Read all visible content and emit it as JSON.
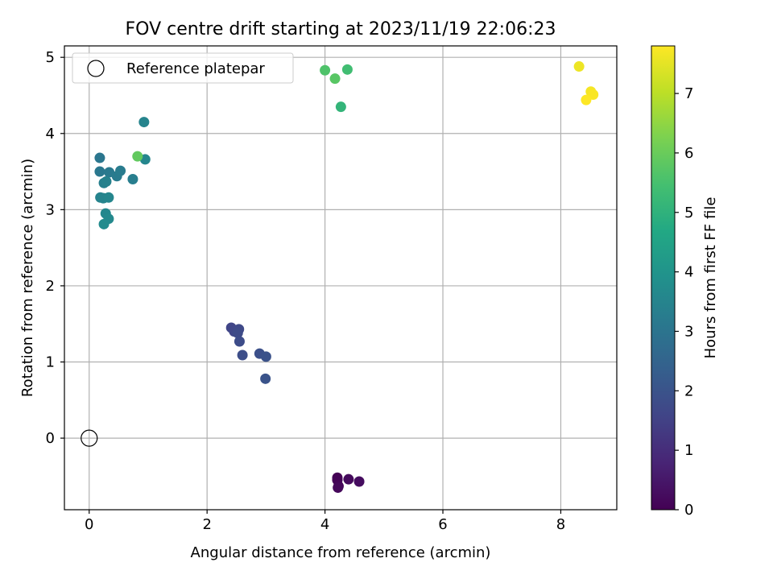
{
  "chart_data": {
    "type": "scatter",
    "title": "FOV centre drift starting at 2023/11/19 22:06:23",
    "xlabel": "Angular distance from reference (arcmin)",
    "ylabel": "Rotation from reference (arcmin)",
    "xlim": [
      -0.42,
      8.95
    ],
    "ylim": [
      -0.94,
      5.15
    ],
    "xticks": [
      "0",
      "2",
      "4",
      "6",
      "8"
    ],
    "xtick_values": [
      0,
      2,
      4,
      6,
      8
    ],
    "yticks": [
      "0",
      "1",
      "2",
      "3",
      "4",
      "5"
    ],
    "ytick_values": [
      0,
      1,
      2,
      3,
      4,
      5
    ],
    "grid": true,
    "legend": {
      "position": "upper-left",
      "entries": [
        "Reference platepar"
      ]
    },
    "reference_point": {
      "x": 0,
      "y": 0
    },
    "colorbar": {
      "label": "Hours from first FF file",
      "colormap": "viridis",
      "range": [
        0,
        7.8
      ],
      "ticks": [
        "0",
        "1",
        "2",
        "3",
        "4",
        "5",
        "6",
        "7"
      ],
      "tick_values": [
        0,
        1,
        2,
        3,
        4,
        5,
        6,
        7
      ]
    },
    "points": [
      {
        "x": 4.21,
        "y": -0.52,
        "c": 0.0
      },
      {
        "x": 4.21,
        "y": -0.55,
        "c": 0.05
      },
      {
        "x": 4.23,
        "y": -0.63,
        "c": 0.1
      },
      {
        "x": 4.22,
        "y": -0.65,
        "c": 0.15
      },
      {
        "x": 4.4,
        "y": -0.54,
        "c": 0.2
      },
      {
        "x": 4.58,
        "y": -0.57,
        "c": 0.25
      },
      {
        "x": 2.41,
        "y": 1.45,
        "c": 1.6
      },
      {
        "x": 2.46,
        "y": 1.4,
        "c": 1.65
      },
      {
        "x": 2.54,
        "y": 1.43,
        "c": 1.7
      },
      {
        "x": 2.52,
        "y": 1.38,
        "c": 1.75
      },
      {
        "x": 2.55,
        "y": 1.27,
        "c": 1.8
      },
      {
        "x": 2.6,
        "y": 1.09,
        "c": 1.85
      },
      {
        "x": 2.89,
        "y": 1.11,
        "c": 1.9
      },
      {
        "x": 3.0,
        "y": 1.07,
        "c": 1.95
      },
      {
        "x": 2.99,
        "y": 0.78,
        "c": 2.0
      },
      {
        "x": 0.18,
        "y": 3.68,
        "c": 3.05
      },
      {
        "x": 0.18,
        "y": 3.5,
        "c": 3.1
      },
      {
        "x": 0.34,
        "y": 3.49,
        "c": 3.15
      },
      {
        "x": 0.47,
        "y": 3.44,
        "c": 3.2
      },
      {
        "x": 0.53,
        "y": 3.51,
        "c": 3.25
      },
      {
        "x": 0.74,
        "y": 3.4,
        "c": 3.3
      },
      {
        "x": 0.25,
        "y": 3.35,
        "c": 3.35
      },
      {
        "x": 0.29,
        "y": 3.37,
        "c": 3.4
      },
      {
        "x": 0.19,
        "y": 3.16,
        "c": 3.45
      },
      {
        "x": 0.24,
        "y": 3.15,
        "c": 3.5
      },
      {
        "x": 0.33,
        "y": 3.16,
        "c": 3.55
      },
      {
        "x": 0.28,
        "y": 2.95,
        "c": 3.6
      },
      {
        "x": 0.33,
        "y": 2.88,
        "c": 3.65
      },
      {
        "x": 0.25,
        "y": 2.81,
        "c": 3.7
      },
      {
        "x": 0.93,
        "y": 4.15,
        "c": 3.5
      },
      {
        "x": 0.95,
        "y": 3.66,
        "c": 3.55
      },
      {
        "x": 0.82,
        "y": 3.7,
        "c": 5.9
      },
      {
        "x": 4.0,
        "y": 4.83,
        "c": 5.6
      },
      {
        "x": 4.38,
        "y": 4.84,
        "c": 5.4
      },
      {
        "x": 4.17,
        "y": 4.72,
        "c": 5.75
      },
      {
        "x": 4.27,
        "y": 4.35,
        "c": 5.1
      },
      {
        "x": 8.31,
        "y": 4.88,
        "c": 7.6
      },
      {
        "x": 8.51,
        "y": 4.55,
        "c": 7.7
      },
      {
        "x": 8.55,
        "y": 4.51,
        "c": 7.75
      },
      {
        "x": 8.43,
        "y": 4.44,
        "c": 7.8
      }
    ]
  }
}
